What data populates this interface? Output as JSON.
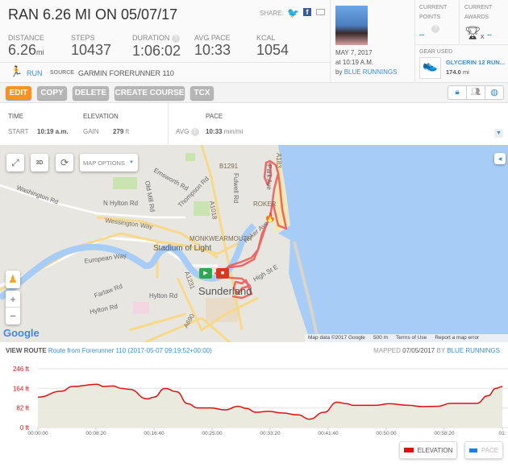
{
  "header": {
    "title": "RAN 6.26 MI ON 05/07/17",
    "share_label": "SHARE:",
    "stats": [
      {
        "label": "DISTANCE",
        "value": "6.26",
        "unit": "mi"
      },
      {
        "label": "STEPS",
        "value": "10437"
      },
      {
        "label": "DURATION",
        "value": "1:06:02",
        "help": "?"
      },
      {
        "label": "AVG PACE",
        "value": "10:33"
      },
      {
        "label": "KCAL",
        "value": "1054"
      }
    ],
    "activity_type": "RUN",
    "source_label": "SOURCE",
    "source": "GARMIN FORERUNNER 110"
  },
  "profile": {
    "date": "MAY 7, 2017",
    "time": "at 10:19 A.M.",
    "by": "by",
    "user": "BLUE RUNNINGS"
  },
  "points": {
    "label1": "CURRENT",
    "label2": "POINTS",
    "value": "--",
    "help": "?"
  },
  "awards": {
    "label1": "CURRENT",
    "label2": "AWARDS",
    "x": "x",
    "value": "--"
  },
  "gear": {
    "label": "GEAR USED",
    "name": "GLYCERIN 12 RUN...",
    "distance": "174.0",
    "unit": "mi"
  },
  "toolbar": {
    "edit": "EDIT",
    "copy": "COPY",
    "delete": "DELETE",
    "create_course": "CREATE COURSE",
    "tcx": "TCX"
  },
  "details": {
    "time_h": "TIME",
    "start_l": "START",
    "start_v": "10:19 a.m.",
    "elev_h": "ELEVATION",
    "gain_l": "GAIN",
    "gain_v": "279",
    "gain_u": "ft",
    "pace_h": "PACE",
    "avg_l": "AVG",
    "avg_v": "10:33",
    "avg_u": "min/mi",
    "help": "?"
  },
  "map": {
    "options": "MAP OPTIONS",
    "btn_3d": "3D",
    "zoom_in": "+",
    "zoom_out": "−",
    "google": "Google",
    "attribution": "Map data ©2017 Google",
    "scale": "500 m",
    "terms": "Terms of Use",
    "report": "Report a map error",
    "labels": {
      "roker": "ROKER",
      "monk": "MONKWEARMOUTH",
      "stadium": "Stadium of Light",
      "sunderland": "Sunderland",
      "wessington": "Wessington Way",
      "nhylton": "N Hylton Rd",
      "washington": "Washington Rd",
      "european": "European Way",
      "hylton1": "Hylton Rd",
      "hylton2": "Hylton Rd",
      "a1018": "A1018",
      "a1231": "A1231",
      "b1291": "B1291",
      "emsworth": "Emsworth Rd",
      "thompson": "Thompson Rd",
      "fulwell": "Fulwell Rd",
      "a183": "A183",
      "a690": "A690",
      "highst": "High St E",
      "farilaw": "Farlaw Rd",
      "oldmill": "Old Mill Rd",
      "parkave": "Park Ave",
      "rokerave": "Roker Ave"
    }
  },
  "route": {
    "view_label": "VIEW ROUTE",
    "name": "Route from Forerunner 110 (2017-05-07 09:19:52+00:00)",
    "mapped_label": "MAPPED",
    "mapped_date": "07/05/2017",
    "by": "BY",
    "user": "BLUE RUNNINGS"
  },
  "colors": {
    "accent": "#f7931e",
    "link": "#3d8fd1",
    "elevation": "#e01010",
    "pace": "#1a7fe8",
    "route": "#f0524f"
  },
  "chart_data": {
    "type": "area",
    "ylabel": "",
    "xlabel": "",
    "y_ticks": [
      "0 ft",
      "82 ft",
      "164 ft",
      "246 ft"
    ],
    "ylim": [
      0,
      246
    ],
    "x_ticks": [
      "00:00:00",
      "00:08:20",
      "00:16:40",
      "00:25:00",
      "00:33:20",
      "00:41:40",
      "00:50:00",
      "00:58:20",
      "01:"
    ],
    "xlim": [
      "00:00:00",
      "01:06:40"
    ],
    "grid": "horizontal",
    "legend": "bottom-right",
    "legend_entries": [
      {
        "name": "ELEVATION",
        "active": true
      },
      {
        "name": "PACE",
        "active": false
      }
    ],
    "series": [
      {
        "name": "ELEVATION",
        "x": [
          "00:00:00",
          "00:03:21",
          "00:04:59",
          "00:08:29",
          "00:09:24",
          "00:10:48",
          "00:11:58",
          "00:13:08",
          "00:15:42",
          "00:16:38",
          "00:18:15",
          "00:19:53",
          "00:21:31",
          "00:22:55",
          "00:24:47",
          "00:26:53",
          "00:28:44",
          "00:29:54",
          "00:31:18",
          "00:33:09",
          "00:35:02",
          "00:37:21",
          "00:38:58",
          "00:41:05",
          "00:42:56",
          "00:44:20",
          "00:45:16",
          "00:48:31",
          "00:50:23",
          "00:53:11",
          "00:55:03",
          "00:57:23",
          "00:59:14",
          "01:02:58",
          "01:04:36",
          "01:05:45",
          "01:06:41"
        ],
        "y": [
          127,
          152,
          172,
          181,
          172,
          174,
          164,
          160,
          120,
          127,
          164,
          150,
          100,
          82,
          82,
          74,
          89,
          80,
          64,
          68,
          61,
          53,
          35,
          64,
          106,
          100,
          93,
          93,
          100,
          93,
          88,
          89,
          101,
          101,
          133,
          164,
          172
        ]
      }
    ]
  }
}
